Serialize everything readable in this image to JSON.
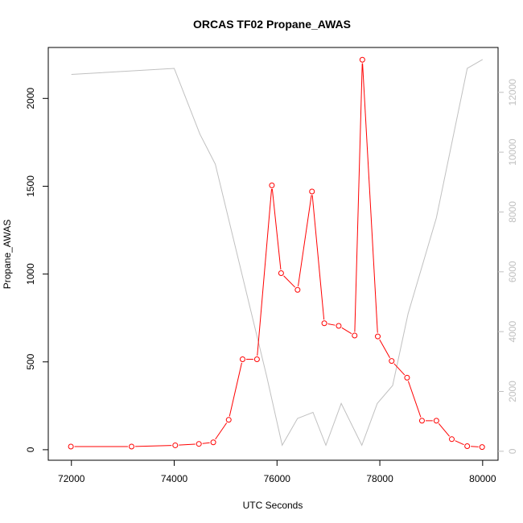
{
  "chart_data": {
    "type": "line",
    "title": "ORCAS TF02 Propane_AWAS",
    "xlabel": "UTC Seconds",
    "ylabel": "Propane_AWAS",
    "xlim": [
      71550,
      80300
    ],
    "ylim": [
      -60,
      2290
    ],
    "y2lim": [
      -300,
      13500
    ],
    "x_ticks": [
      "72000",
      "74000",
      "76000",
      "78000",
      "80000"
    ],
    "y_ticks": [
      "0",
      "500",
      "1000",
      "1500",
      "2000"
    ],
    "y2_ticks": [
      "0",
      "2000",
      "4000",
      "6000",
      "8000",
      "10000",
      "12000"
    ],
    "series": [
      {
        "axis": "left",
        "color": "#ff0000",
        "marker": "open-circle",
        "x": [
          71990,
          73170,
          74020,
          74480,
          74760,
          75060,
          75330,
          75610,
          75900,
          76080,
          76400,
          76680,
          76920,
          77200,
          77510,
          77660,
          77960,
          78230,
          78530,
          78820,
          79100,
          79400,
          79700,
          79990
        ],
        "values": [
          18,
          18,
          25,
          33,
          42,
          170,
          515,
          515,
          1505,
          1005,
          910,
          1470,
          720,
          705,
          650,
          2220,
          645,
          505,
          410,
          165,
          165,
          60,
          20,
          15
        ]
      },
      {
        "axis": "right",
        "color": "#c0c0c0",
        "marker": "none",
        "x": [
          72000,
          74000,
          74500,
          74800,
          75800,
          76100,
          76400,
          76700,
          76950,
          77250,
          77650,
          77950,
          78250,
          78550,
          79100,
          79700,
          80000
        ],
        "values": [
          12600,
          12800,
          10600,
          9600,
          2500,
          200,
          1100,
          1300,
          200,
          1600,
          200,
          1600,
          2200,
          4600,
          7800,
          12800,
          13100
        ]
      }
    ]
  }
}
